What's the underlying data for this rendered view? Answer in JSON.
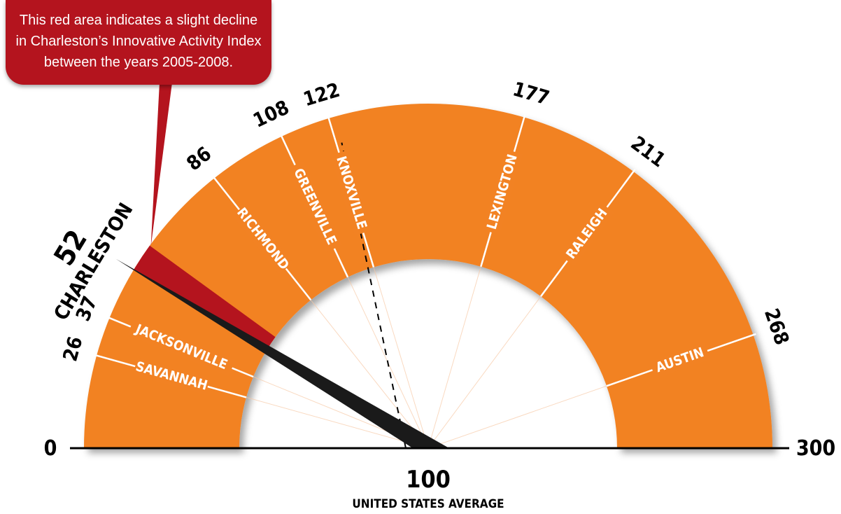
{
  "callout": {
    "text": "This red area indicates a slight decline\nin Charleston’s Innovative Activity Index\nbetween the years 2005-2008."
  },
  "chart_data": {
    "type": "gauge",
    "title": "",
    "scale_min": 0,
    "scale_max": 300,
    "scale_min_label": "0",
    "scale_max_label": "300",
    "reference": {
      "value": 100,
      "label": "100",
      "caption": "UNITED STATES AVERAGE"
    },
    "highlight": {
      "name": "CHARLESTON",
      "value": 52,
      "decline_from": 60
    },
    "cities": [
      {
        "name": "SAVANNAH",
        "value": 26
      },
      {
        "name": "JACKSONVILLE",
        "value": 37
      },
      {
        "name": "RICHMOND",
        "value": 86
      },
      {
        "name": "GREENVILLE",
        "value": 108
      },
      {
        "name": "KNOXVILLE",
        "value": 122
      },
      {
        "name": "LEXINGTON",
        "value": 177
      },
      {
        "name": "RALEIGH",
        "value": 211
      },
      {
        "name": "AUSTIN",
        "value": 268
      }
    ],
    "colors": {
      "band": "#f28223",
      "decline": "#b4141e",
      "needle": "#1a1a1a",
      "text": "#000000",
      "label_on_band": "#ffffff"
    }
  }
}
